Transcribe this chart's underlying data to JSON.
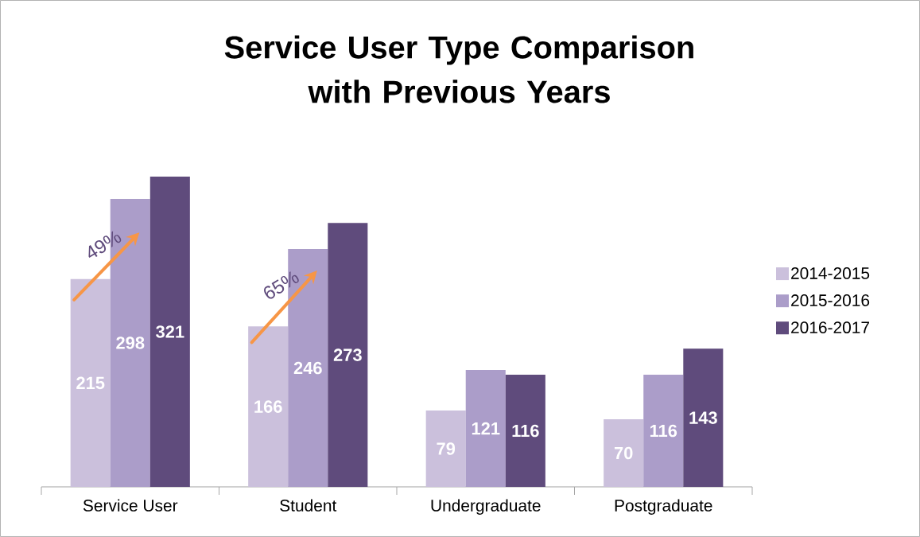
{
  "chart_data": {
    "type": "bar",
    "title": "Service User Type Comparison with Previous Years",
    "categories": [
      "Service User",
      "Student",
      "Undergraduate",
      "Postgraduate"
    ],
    "series": [
      {
        "name": "2014-2015",
        "color": "#cbc0dc",
        "values": [
          215,
          166,
          79,
          70
        ]
      },
      {
        "name": "2015-2016",
        "color": "#ab9dc9",
        "values": [
          298,
          246,
          121,
          116
        ]
      },
      {
        "name": "2016-2017",
        "color": "#5f4b7c",
        "values": [
          321,
          273,
          116,
          143
        ]
      }
    ],
    "data_labels": true,
    "legend": "right",
    "annotations": [
      "49%",
      "65%"
    ]
  }
}
